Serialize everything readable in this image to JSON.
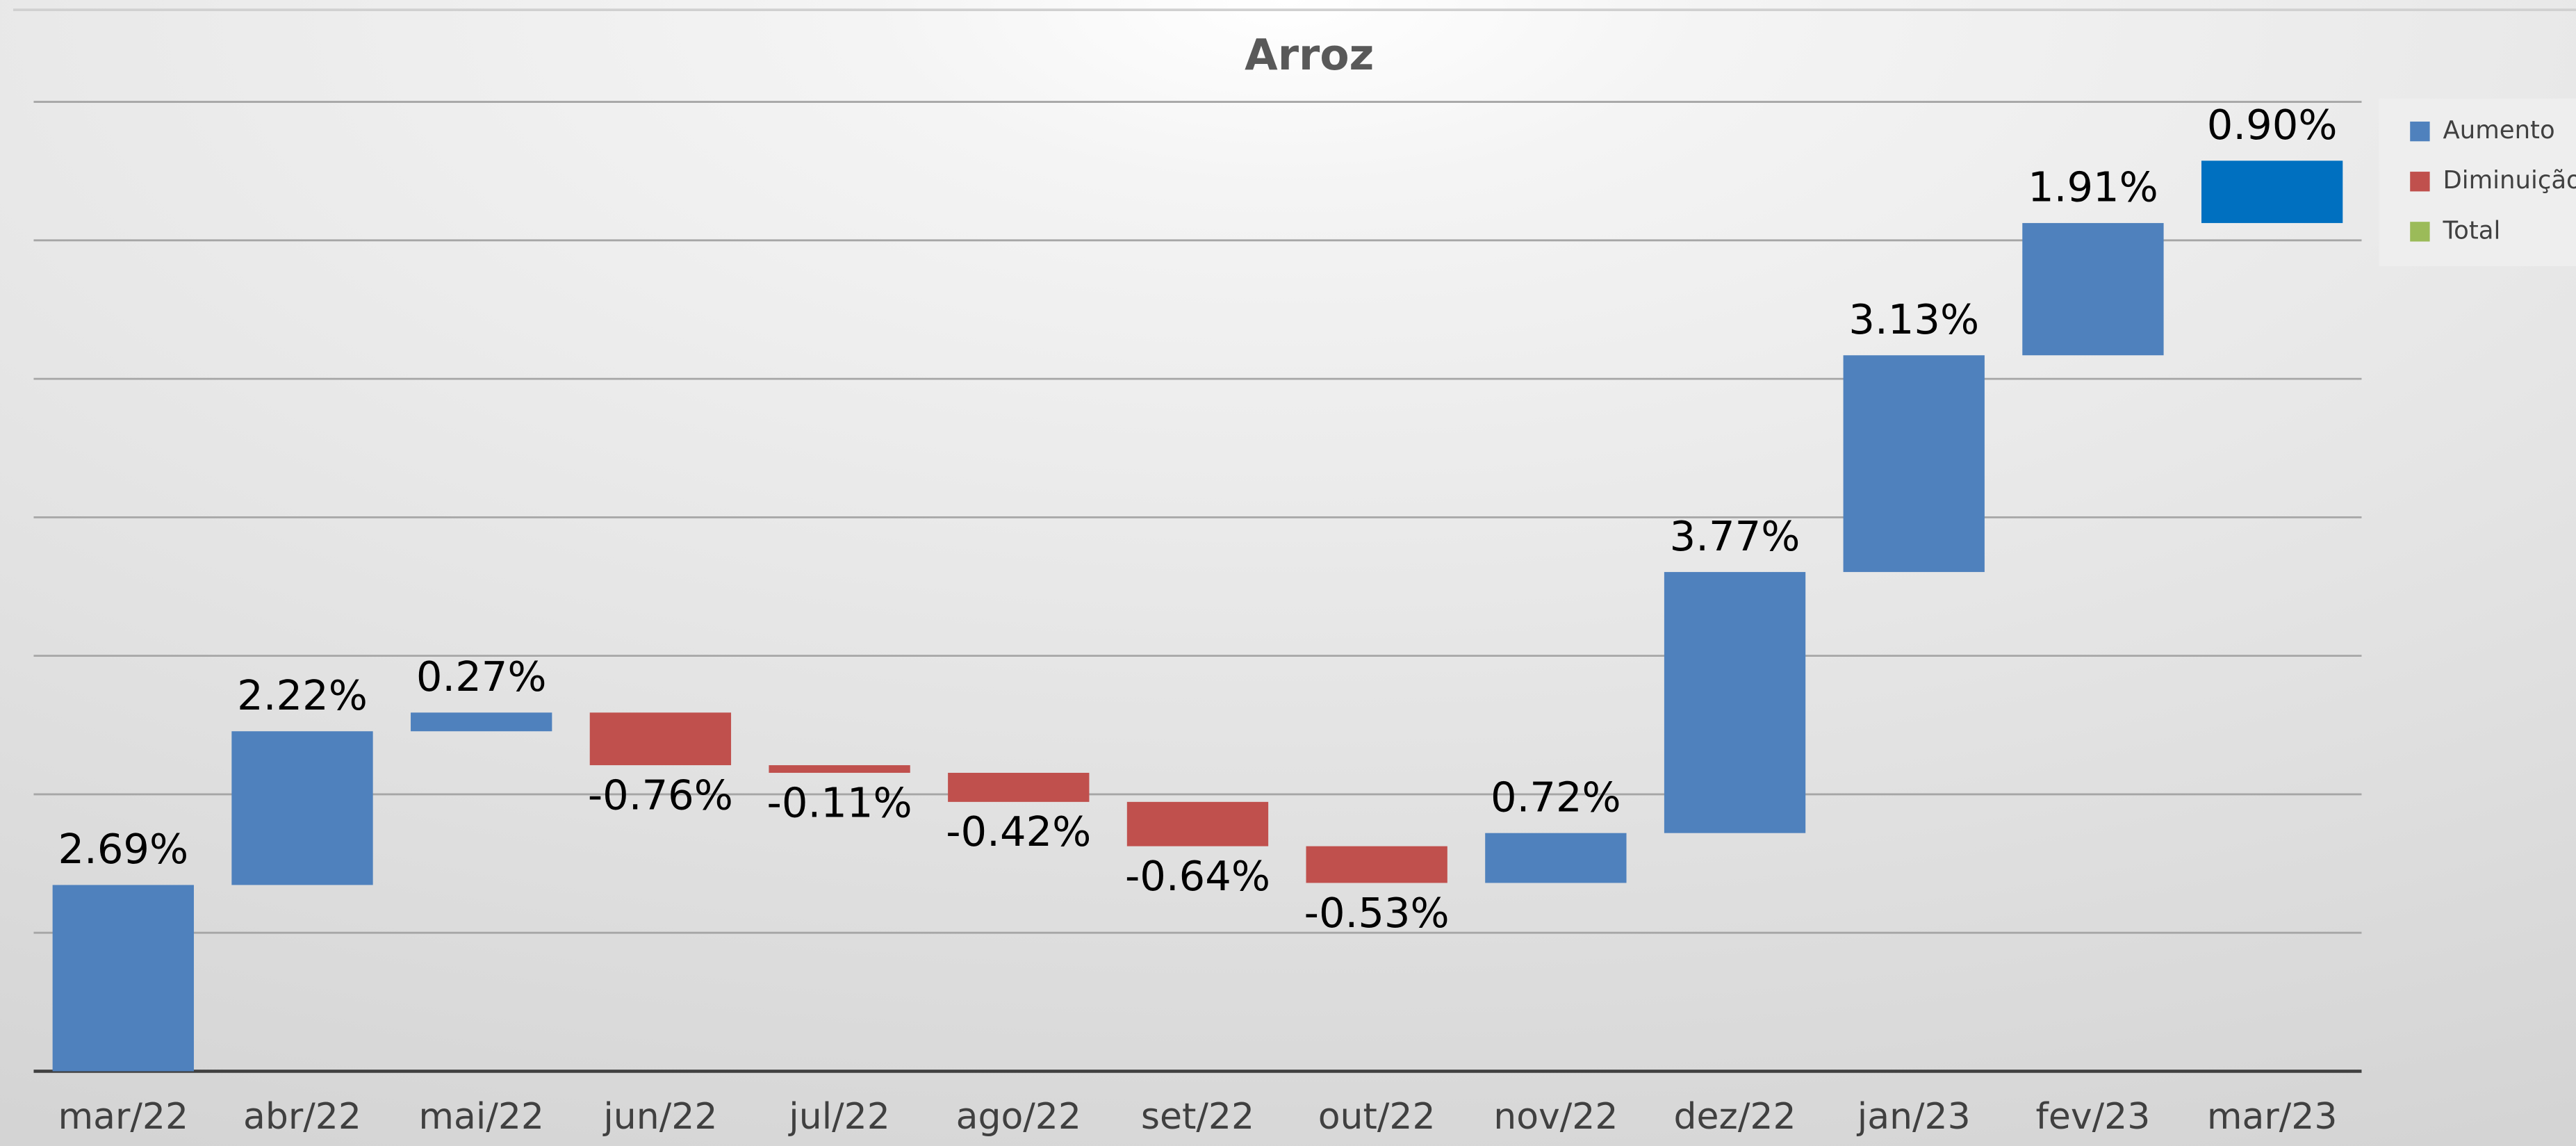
{
  "chart_data": {
    "type": "waterfall",
    "title": "Arroz",
    "categories": [
      "mar/22",
      "abr/22",
      "mai/22",
      "jun/22",
      "jul/22",
      "ago/22",
      "set/22",
      "out/22",
      "nov/22",
      "dez/22",
      "jan/23",
      "fev/23",
      "mar/23"
    ],
    "values": [
      2.69,
      2.22,
      0.27,
      -0.76,
      -0.11,
      -0.42,
      -0.64,
      -0.53,
      0.72,
      3.77,
      3.13,
      1.91,
      0.9
    ],
    "value_labels": [
      "2.69%",
      "2.22%",
      "0.27%",
      "-0.76%",
      "-0.11%",
      "-0.42%",
      "-0.64%",
      "-0.53%",
      "0.72%",
      "3.77%",
      "3.13%",
      "1.91%",
      "0.90%"
    ],
    "bar_colors": [
      "#4f81bd",
      "#4f81bd",
      "#4f81bd",
      "#c0504d",
      "#c0504d",
      "#c0504d",
      "#c0504d",
      "#c0504d",
      "#4f81bd",
      "#4f81bd",
      "#4f81bd",
      "#4f81bd",
      "#0070c0"
    ],
    "legend": [
      {
        "name": "Aumento",
        "color": "#4f81bd"
      },
      {
        "name": "Diminuição",
        "color": "#c0504d"
      },
      {
        "name": "Total",
        "color": "#9bbb59"
      }
    ],
    "ylim": [
      0,
      14
    ],
    "yticks": [
      0,
      2,
      4,
      6,
      8,
      10,
      12,
      14
    ],
    "grid": true
  }
}
